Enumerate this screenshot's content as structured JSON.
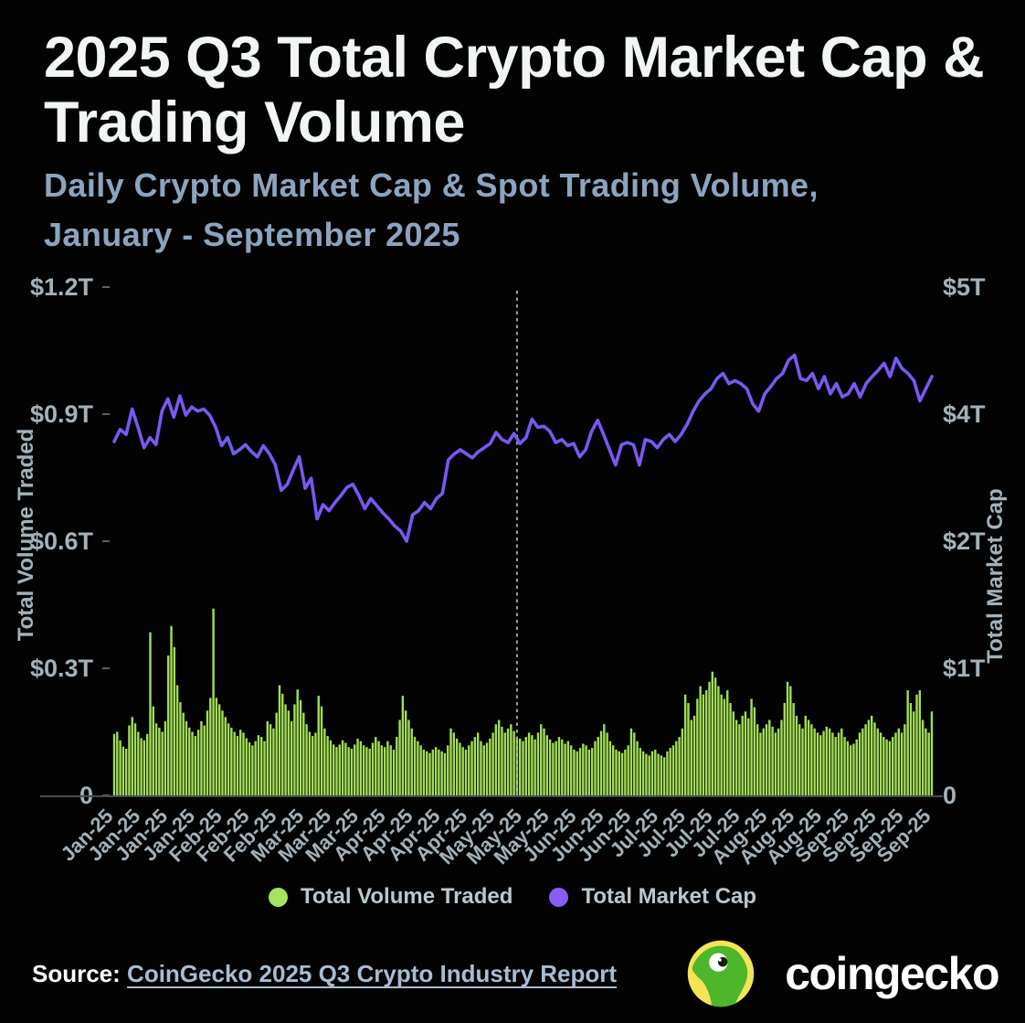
{
  "title": "2025 Q3 Total Crypto Market Cap & Trading Volume",
  "subtitle_line1": "Daily Crypto Market Cap & Spot Trading Volume,",
  "subtitle_line2": "January - September 2025",
  "chart_data": {
    "type": "combo-bar-line",
    "x_start": "2025-01-01",
    "x_end": "2025-09-30",
    "x_tick_labels": [
      "Jan-25",
      "Jan-25",
      "Jan-25",
      "Jan-25",
      "Feb-25",
      "Feb-25",
      "Feb-25",
      "Mar-25",
      "Mar-25",
      "Mar-25",
      "Apr-25",
      "Apr-25",
      "Apr-25",
      "Apr-25",
      "May-25",
      "May-25",
      "May-25",
      "Jun-25",
      "Jun-25",
      "Jun-25",
      "Jul-25",
      "Jul-25",
      "Jul-25",
      "Jul-25",
      "Aug-25",
      "Aug-25",
      "Aug-25",
      "Sep-25",
      "Sep-25",
      "Sep-25",
      "Sep-25"
    ],
    "left_axis": {
      "title": "Total Volume Traded",
      "tick_labels": [
        "0",
        "$0.3T",
        "$0.6T",
        "$0.9T",
        "$1.2T"
      ],
      "range_trillions": [
        0,
        1.2
      ]
    },
    "right_axis": {
      "title": "Total Market Cap",
      "tick_labels": [
        "0",
        "$1T",
        "$2T",
        "$4T",
        "$5T"
      ],
      "range_trillions": [
        0,
        5
      ]
    },
    "series": [
      {
        "name": "Total Volume Traded",
        "type": "bar",
        "unit": "$B",
        "frequency": "daily",
        "values": [
          145,
          150,
          130,
          115,
          110,
          165,
          185,
          170,
          150,
          135,
          130,
          145,
          385,
          210,
          170,
          160,
          150,
          175,
          330,
          400,
          350,
          260,
          220,
          195,
          175,
          160,
          150,
          140,
          155,
          175,
          165,
          200,
          230,
          441,
          230,
          215,
          200,
          185,
          170,
          160,
          150,
          140,
          155,
          148,
          135,
          125,
          118,
          128,
          142,
          138,
          128,
          175,
          168,
          158,
          195,
          260,
          240,
          215,
          200,
          175,
          215,
          250,
          225,
          195,
          168,
          150,
          140,
          148,
          235,
          210,
          158,
          140,
          130,
          120,
          114,
          120,
          130,
          124,
          114,
          110,
          120,
          134,
          128,
          118,
          114,
          110,
          124,
          138,
          128,
          118,
          114,
          128,
          118,
          108,
          138,
          178,
          235,
          200,
          178,
          158,
          138,
          128,
          118,
          108,
          104,
          100,
          108,
          114,
          108,
          104,
          100,
          118,
          158,
          148,
          134,
          124,
          114,
          108,
          118,
          128,
          138,
          148,
          128,
          118,
          124,
          134,
          148,
          168,
          178,
          162,
          148,
          158,
          168,
          152,
          138,
          134,
          128,
          138,
          148,
          142,
          132,
          148,
          168,
          158,
          142,
          132,
          124,
          128,
          138,
          132,
          122,
          128,
          118,
          108,
          104,
          112,
          122,
          118,
          108,
          112,
          128,
          138,
          152,
          168,
          148,
          128,
          118,
          108,
          104,
          100,
          108,
          118,
          158,
          148,
          128,
          112,
          104,
          98,
          94,
          104,
          108,
          98,
          94,
          90,
          104,
          112,
          118,
          128,
          138,
          158,
          238,
          218,
          178,
          188,
          228,
          258,
          238,
          248,
          268,
          292,
          278,
          258,
          238,
          228,
          248,
          218,
          198,
          178,
          168,
          188,
          198,
          182,
          228,
          208,
          168,
          148,
          158,
          168,
          178,
          162,
          148,
          158,
          178,
          218,
          268,
          258,
          218,
          188,
          168,
          158,
          188,
          178,
          168,
          158,
          148,
          142,
          152,
          162,
          158,
          148,
          138,
          148,
          158,
          138,
          128,
          118,
          122,
          132,
          148,
          158,
          168,
          178,
          188,
          172,
          158,
          148,
          138,
          132,
          128,
          138,
          148,
          158,
          148,
          168,
          248,
          218,
          198,
          238,
          248,
          178,
          158,
          148,
          198
        ]
      },
      {
        "name": "Total Market Cap",
        "type": "line",
        "unit": "$T",
        "frequency": "every-2-days",
        "values": [
          3.48,
          3.6,
          3.55,
          3.8,
          3.62,
          3.42,
          3.52,
          3.45,
          3.78,
          3.9,
          3.72,
          3.93,
          3.74,
          3.82,
          3.78,
          3.8,
          3.74,
          3.62,
          3.44,
          3.52,
          3.36,
          3.4,
          3.45,
          3.38,
          3.33,
          3.44,
          3.36,
          3.25,
          3.0,
          3.06,
          3.2,
          3.33,
          3.02,
          3.12,
          2.72,
          2.86,
          2.8,
          2.88,
          2.95,
          3.03,
          3.06,
          2.95,
          2.82,
          2.92,
          2.85,
          2.78,
          2.72,
          2.65,
          2.6,
          2.5,
          2.76,
          2.8,
          2.88,
          2.82,
          2.92,
          2.97,
          3.3,
          3.36,
          3.4,
          3.36,
          3.32,
          3.38,
          3.42,
          3.46,
          3.57,
          3.5,
          3.47,
          3.56,
          3.46,
          3.52,
          3.7,
          3.62,
          3.63,
          3.58,
          3.47,
          3.5,
          3.44,
          3.46,
          3.33,
          3.4,
          3.58,
          3.69,
          3.55,
          3.4,
          3.25,
          3.45,
          3.47,
          3.45,
          3.25,
          3.5,
          3.48,
          3.42,
          3.5,
          3.55,
          3.48,
          3.55,
          3.65,
          3.78,
          3.88,
          3.95,
          4.0,
          4.1,
          4.15,
          4.05,
          4.08,
          4.05,
          4.0,
          3.85,
          3.78,
          3.95,
          4.02,
          4.1,
          4.15,
          4.28,
          4.33,
          4.1,
          4.08,
          4.15,
          4.0,
          4.12,
          3.95,
          4.05,
          3.92,
          3.95,
          4.05,
          3.92,
          4.05,
          4.12,
          4.18,
          4.25,
          4.12,
          4.3,
          4.2,
          4.15,
          4.08,
          3.88,
          4.0,
          4.12
        ]
      }
    ],
    "annotations": [
      {
        "type": "vline-dashed",
        "x_day_index": 134
      }
    ],
    "grid": "off",
    "legend_position": "bottom"
  },
  "legend": [
    {
      "label": "Total Volume Traded",
      "color": "#a8e25e"
    },
    {
      "label": "Total Market Cap",
      "color": "#8a5cf7"
    }
  ],
  "footer": {
    "source_label": "Source:",
    "source_link_text": "CoinGecko 2025 Q3 Crypto Industry Report",
    "brand_name": "coingecko"
  },
  "colors": {
    "background": "#030304",
    "title": "#f2f5f6",
    "subtitle": "#8ca4bf",
    "bars": "#a2de55",
    "line": "#7a58f2",
    "axis_text": "#a3b2ba",
    "baseline": "#464c50",
    "dashed_marker": "#9aa0a0"
  }
}
